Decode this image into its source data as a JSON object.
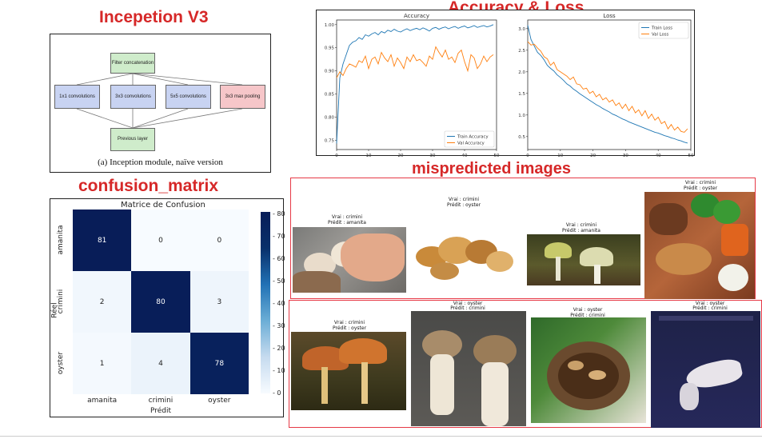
{
  "titles": {
    "inception": "Incepetion V3",
    "acc_loss": "Accuracy & Loss",
    "confusion": "confusion_matrix",
    "mispredicted": "mispredicted images"
  },
  "inception_diagram": {
    "filter_concat": "Filter concatenation",
    "branch_1x1": "1x1 convolutions",
    "branch_3x3": "3x3 convolutions",
    "branch_5x5": "5x5 convolutions",
    "branch_pool": "3x3 max pooling",
    "previous_layer": "Previous layer",
    "caption": "(a) Inception module, naïve version"
  },
  "chart_data": [
    {
      "type": "line",
      "title": "Accuracy",
      "xlim": [
        0,
        50
      ],
      "ylim": [
        0.73,
        1.01
      ],
      "xticks": [
        "0",
        "10",
        "20",
        "30",
        "40",
        "50"
      ],
      "yticks": [
        "0.75",
        "0.80",
        "0.85",
        "0.90",
        "0.95",
        "1.00"
      ],
      "legend_position": "lower-right",
      "series": [
        {
          "name": "Train Accuracy",
          "color": "#1f77b4",
          "x": [
            0,
            1,
            2,
            3,
            4,
            5,
            6,
            7,
            8,
            9,
            10,
            11,
            12,
            13,
            14,
            15,
            16,
            17,
            18,
            19,
            20,
            21,
            22,
            23,
            24,
            25,
            26,
            27,
            28,
            29,
            30,
            31,
            32,
            33,
            34,
            35,
            36,
            37,
            38,
            39,
            40,
            41,
            42,
            43,
            44,
            45,
            46,
            47,
            48,
            49
          ],
          "values": [
            0.743,
            0.885,
            0.915,
            0.935,
            0.955,
            0.962,
            0.965,
            0.972,
            0.968,
            0.978,
            0.975,
            0.98,
            0.983,
            0.978,
            0.985,
            0.982,
            0.988,
            0.985,
            0.99,
            0.986,
            0.984,
            0.988,
            0.991,
            0.987,
            0.99,
            0.992,
            0.989,
            0.993,
            0.99,
            0.986,
            0.992,
            0.994,
            0.99,
            0.993,
            0.995,
            0.991,
            0.994,
            0.996,
            0.992,
            0.995,
            0.997,
            0.993,
            0.995,
            0.998,
            0.994,
            0.996,
            0.998,
            0.995,
            0.997,
            1.0
          ]
        },
        {
          "name": "Val Accuracy",
          "color": "#ff7f0e",
          "x": [
            0,
            1,
            2,
            3,
            4,
            5,
            6,
            7,
            8,
            9,
            10,
            11,
            12,
            13,
            14,
            15,
            16,
            17,
            18,
            19,
            20,
            21,
            22,
            23,
            24,
            25,
            26,
            27,
            28,
            29,
            30,
            31,
            32,
            33,
            34,
            35,
            36,
            37,
            38,
            39,
            40,
            41,
            42,
            43,
            44,
            45,
            46,
            47,
            48,
            49
          ],
          "values": [
            0.885,
            0.898,
            0.89,
            0.905,
            0.915,
            0.912,
            0.908,
            0.922,
            0.918,
            0.932,
            0.905,
            0.925,
            0.93,
            0.915,
            0.94,
            0.928,
            0.92,
            0.935,
            0.91,
            0.928,
            0.918,
            0.905,
            0.93,
            0.92,
            0.935,
            0.922,
            0.925,
            0.918,
            0.91,
            0.932,
            0.925,
            0.952,
            0.94,
            0.93,
            0.945,
            0.925,
            0.93,
            0.918,
            0.938,
            0.945,
            0.92,
            0.9,
            0.935,
            0.928,
            0.905,
            0.915,
            0.932,
            0.92,
            0.93,
            0.935
          ]
        }
      ]
    },
    {
      "type": "line",
      "title": "Loss",
      "xlim": [
        0,
        50
      ],
      "ylim": [
        0.2,
        3.2
      ],
      "xticks": [
        "0",
        "10",
        "20",
        "30",
        "40",
        "50"
      ],
      "yticks": [
        "0.5",
        "1.0",
        "1.5",
        "2.0",
        "2.5",
        "3.0"
      ],
      "legend_position": "upper-right",
      "series": [
        {
          "name": "Train Loss",
          "color": "#1f77b4",
          "x": [
            0,
            1,
            2,
            3,
            4,
            5,
            6,
            7,
            8,
            9,
            10,
            11,
            12,
            13,
            14,
            15,
            16,
            17,
            18,
            19,
            20,
            21,
            22,
            23,
            24,
            25,
            26,
            27,
            28,
            29,
            30,
            31,
            32,
            33,
            34,
            35,
            36,
            37,
            38,
            39,
            40,
            41,
            42,
            43,
            44,
            45,
            46,
            47,
            48,
            49
          ],
          "values": [
            3.08,
            2.75,
            2.6,
            2.45,
            2.38,
            2.28,
            2.15,
            2.08,
            2.02,
            1.93,
            1.87,
            1.8,
            1.72,
            1.67,
            1.6,
            1.55,
            1.49,
            1.44,
            1.39,
            1.34,
            1.29,
            1.24,
            1.2,
            1.15,
            1.11,
            1.07,
            1.02,
            0.99,
            0.95,
            0.91,
            0.88,
            0.84,
            0.81,
            0.78,
            0.75,
            0.72,
            0.69,
            0.66,
            0.63,
            0.6,
            0.58,
            0.55,
            0.52,
            0.5,
            0.47,
            0.45,
            0.42,
            0.4,
            0.37,
            0.35
          ]
        },
        {
          "name": "Val Loss",
          "color": "#ff7f0e",
          "x": [
            0,
            1,
            2,
            3,
            4,
            5,
            6,
            7,
            8,
            9,
            10,
            11,
            12,
            13,
            14,
            15,
            16,
            17,
            18,
            19,
            20,
            21,
            22,
            23,
            24,
            25,
            26,
            27,
            28,
            29,
            30,
            31,
            32,
            33,
            34,
            35,
            36,
            37,
            38,
            39,
            40,
            41,
            42,
            43,
            44,
            45,
            46,
            47,
            48,
            49
          ],
          "values": [
            2.7,
            2.62,
            2.64,
            2.55,
            2.48,
            2.35,
            2.3,
            2.15,
            2.22,
            2.05,
            2.0,
            1.95,
            1.9,
            1.82,
            1.88,
            1.72,
            1.7,
            1.6,
            1.62,
            1.5,
            1.55,
            1.42,
            1.48,
            1.35,
            1.4,
            1.3,
            1.35,
            1.22,
            1.28,
            1.15,
            1.25,
            1.1,
            1.2,
            1.05,
            1.12,
            0.98,
            1.1,
            0.92,
            1.02,
            0.88,
            0.95,
            0.8,
            0.85,
            0.68,
            0.78,
            0.65,
            0.72,
            0.62,
            0.6,
            0.68
          ]
        }
      ]
    },
    {
      "type": "heatmap",
      "title": "Matrice de Confusion",
      "xlabel": "Prédit",
      "ylabel": "Réel",
      "x_categories": [
        "amanita",
        "crimini",
        "oyster"
      ],
      "y_categories": [
        "amanita",
        "crimini",
        "oyster"
      ],
      "values": [
        [
          81,
          0,
          0
        ],
        [
          2,
          80,
          3
        ],
        [
          1,
          4,
          78
        ]
      ],
      "colorbar_ticks": [
        "0",
        "10",
        "20",
        "30",
        "40",
        "50",
        "60",
        "70",
        "80"
      ],
      "vmin": 0,
      "vmax": 81
    }
  ],
  "mispredicted": [
    {
      "true_label": "Vrai : crimini",
      "pred_label": "Prédit : amanita"
    },
    {
      "true_label": "Vrai : crimini",
      "pred_label": "Prédit : oyster"
    },
    {
      "true_label": "Vrai : crimini",
      "pred_label": "Prédit : amanita"
    },
    {
      "true_label": "Vrai : crimini",
      "pred_label": "Prédit : oyster"
    },
    {
      "true_label": "Vrai : crimini",
      "pred_label": "Prédit : oyster"
    },
    {
      "true_label": "Vrai : oyster",
      "pred_label": "Prédit : crimini"
    },
    {
      "true_label": "Vrai : oyster",
      "pred_label": "Prédit : crimini"
    },
    {
      "true_label": "Vrai : oyster",
      "pred_label": "Prédit : crimini"
    }
  ]
}
